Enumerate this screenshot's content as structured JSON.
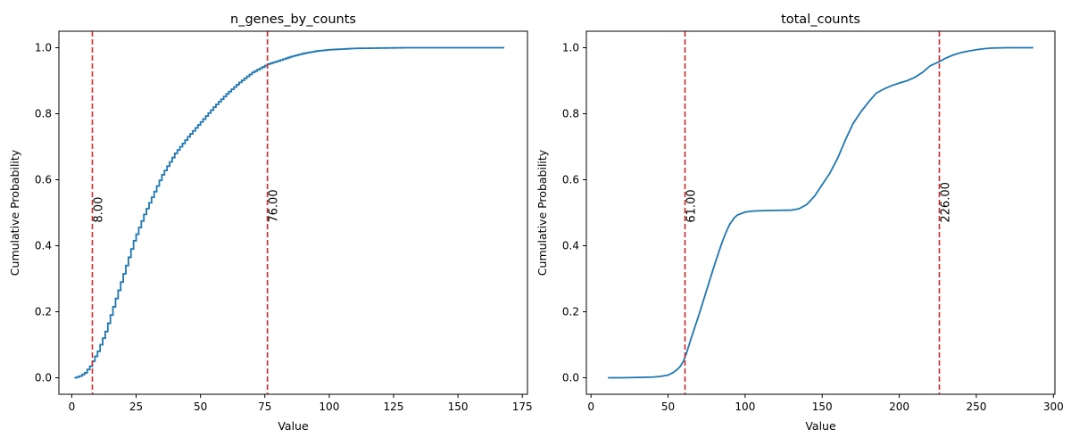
{
  "chart_data": [
    {
      "type": "line",
      "title": "n_genes_by_counts",
      "xlabel": "Value",
      "ylabel": "Cumulative Probability",
      "xlim": [
        -5,
        177
      ],
      "ylim": [
        -0.05,
        1.05
      ],
      "xticks": [
        0,
        25,
        50,
        75,
        100,
        125,
        150,
        175
      ],
      "xtick_labels": [
        "0",
        "25",
        "50",
        "75",
        "100",
        "125",
        "150",
        "175"
      ],
      "yticks": [
        0.0,
        0.2,
        0.4,
        0.6,
        0.8,
        1.0
      ],
      "ytick_labels": [
        "0.0",
        "0.2",
        "0.4",
        "0.6",
        "0.8",
        "1.0"
      ],
      "grid": false,
      "series": [
        {
          "color": "#1f77b4",
          "step": true,
          "x": [
            1,
            3,
            5,
            6,
            7,
            8,
            9,
            10,
            11,
            12,
            13,
            14,
            15,
            16,
            17,
            18,
            19,
            20,
            22,
            24,
            26,
            28,
            30,
            35,
            40,
            45,
            50,
            55,
            60,
            65,
            70,
            76,
            80,
            85,
            90,
            95,
            100,
            110,
            120,
            130,
            140,
            150,
            160,
            168
          ],
          "values": [
            0.0,
            0.005,
            0.015,
            0.025,
            0.035,
            0.05,
            0.065,
            0.08,
            0.1,
            0.12,
            0.14,
            0.165,
            0.19,
            0.215,
            0.24,
            0.265,
            0.29,
            0.315,
            0.365,
            0.415,
            0.455,
            0.495,
            0.53,
            0.615,
            0.68,
            0.73,
            0.775,
            0.82,
            0.86,
            0.895,
            0.925,
            0.95,
            0.96,
            0.973,
            0.983,
            0.99,
            0.994,
            0.998,
            0.999,
            1.0,
            1.0,
            1.0,
            1.0,
            1.0
          ]
        }
      ],
      "reference_lines": [
        {
          "x": 8,
          "label": "8.00",
          "color": "#d62728",
          "style": "dashed"
        },
        {
          "x": 76,
          "label": "76.00",
          "color": "#d62728",
          "style": "dashed"
        }
      ]
    },
    {
      "type": "line",
      "title": "total_counts",
      "xlabel": "Value",
      "ylabel": "Cumulative Probability",
      "xlim": [
        -3,
        301
      ],
      "ylim": [
        -0.05,
        1.05
      ],
      "xticks": [
        0,
        50,
        100,
        150,
        200,
        250,
        300
      ],
      "xtick_labels": [
        "0",
        "50",
        "100",
        "150",
        "200",
        "250",
        "300"
      ],
      "yticks": [
        0.0,
        0.2,
        0.4,
        0.6,
        0.8,
        1.0
      ],
      "ytick_labels": [
        "0.0",
        "0.2",
        "0.4",
        "0.6",
        "0.8",
        "1.0"
      ],
      "grid": false,
      "series": [
        {
          "color": "#1f77b4",
          "step": false,
          "x": [
            11,
            20,
            30,
            40,
            45,
            50,
            53,
            56,
            58,
            60,
            62,
            65,
            70,
            75,
            80,
            85,
            88,
            90,
            93,
            95,
            100,
            105,
            110,
            120,
            130,
            135,
            140,
            145,
            150,
            155,
            160,
            165,
            170,
            175,
            180,
            185,
            190,
            195,
            200,
            205,
            210,
            215,
            220,
            226,
            230,
            235,
            240,
            245,
            250,
            255,
            260,
            270,
            280,
            287
          ],
          "values": [
            0.0,
            0.0,
            0.001,
            0.002,
            0.004,
            0.008,
            0.015,
            0.025,
            0.035,
            0.05,
            0.075,
            0.12,
            0.19,
            0.265,
            0.34,
            0.41,
            0.445,
            0.465,
            0.485,
            0.493,
            0.502,
            0.505,
            0.506,
            0.507,
            0.508,
            0.512,
            0.525,
            0.55,
            0.585,
            0.62,
            0.665,
            0.72,
            0.77,
            0.805,
            0.835,
            0.862,
            0.875,
            0.885,
            0.893,
            0.9,
            0.91,
            0.925,
            0.945,
            0.958,
            0.968,
            0.978,
            0.985,
            0.99,
            0.994,
            0.997,
            0.999,
            1.0,
            1.0,
            1.0
          ]
        }
      ],
      "reference_lines": [
        {
          "x": 61,
          "label": "61.00",
          "color": "#d62728",
          "style": "dashed"
        },
        {
          "x": 226,
          "label": "226.00",
          "color": "#d62728",
          "style": "dashed"
        }
      ]
    }
  ]
}
